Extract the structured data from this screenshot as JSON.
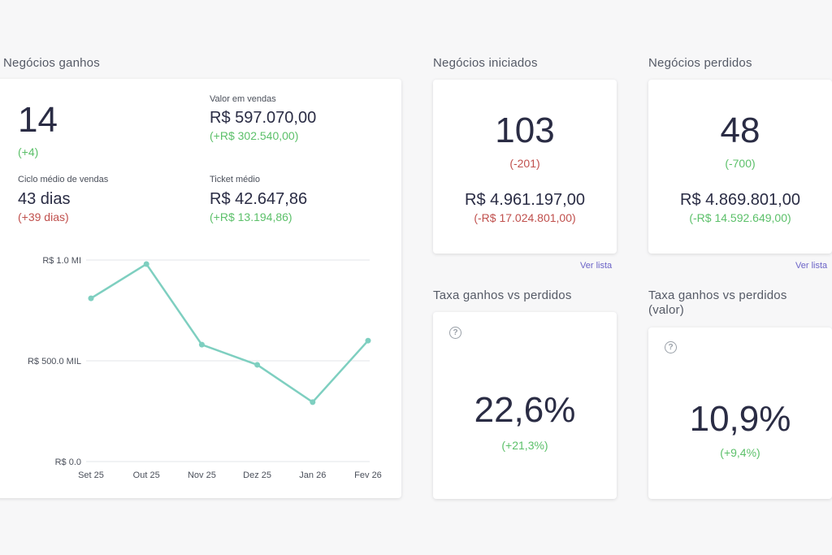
{
  "won": {
    "title": "Negócios ganhos",
    "count": "14",
    "count_delta": "(+4)",
    "sales_value_label": "Valor em vendas",
    "sales_value": "R$ 597.070,00",
    "sales_value_delta": "(+R$ 302.540,00)",
    "cycle_label": "Ciclo médio de vendas",
    "cycle_value": "43 dias",
    "cycle_delta": "(+39 dias)",
    "ticket_label": "Ticket médio",
    "ticket_value": "R$ 42.647,86",
    "ticket_delta": "(+R$ 13.194,86)"
  },
  "started": {
    "title": "Negócios iniciados",
    "count": "103",
    "count_delta": "(-201)",
    "value": "R$ 4.961.197,00",
    "value_delta": "(-R$ 17.024.801,00)",
    "link": "Ver lista"
  },
  "lost": {
    "title": "Negócios perdidos",
    "count": "48",
    "count_delta": "(-700)",
    "value": "R$ 4.869.801,00",
    "value_delta": "(-R$ 14.592.649,00)",
    "link": "Ver lista"
  },
  "rate": {
    "title": "Taxa ganhos vs perdidos",
    "value": "22,6%",
    "delta": "(+21,3%)"
  },
  "rate_value": {
    "title_line1": "Taxa ganhos vs perdidos",
    "title_line2": "(valor)",
    "value": "10,9%",
    "delta": "(+9,4%)"
  },
  "colors": {
    "line": "#7ecfc0",
    "positive": "#5cc06a",
    "negative": "#c0504d",
    "link": "#6b63c7"
  },
  "chart_data": {
    "type": "line",
    "categories": [
      "Set 25",
      "Out 25",
      "Nov 25",
      "Dez 25",
      "Jan 26",
      "Fev 26"
    ],
    "values": [
      810000,
      980000,
      580000,
      480000,
      295000,
      600000
    ],
    "y_ticks": [
      "R$ 0.0",
      "R$ 500.0 MIL",
      "R$ 1.0 MI"
    ],
    "y_tick_values": [
      0,
      500000,
      1000000
    ],
    "ylim": [
      0,
      1000000
    ],
    "grid": true
  }
}
